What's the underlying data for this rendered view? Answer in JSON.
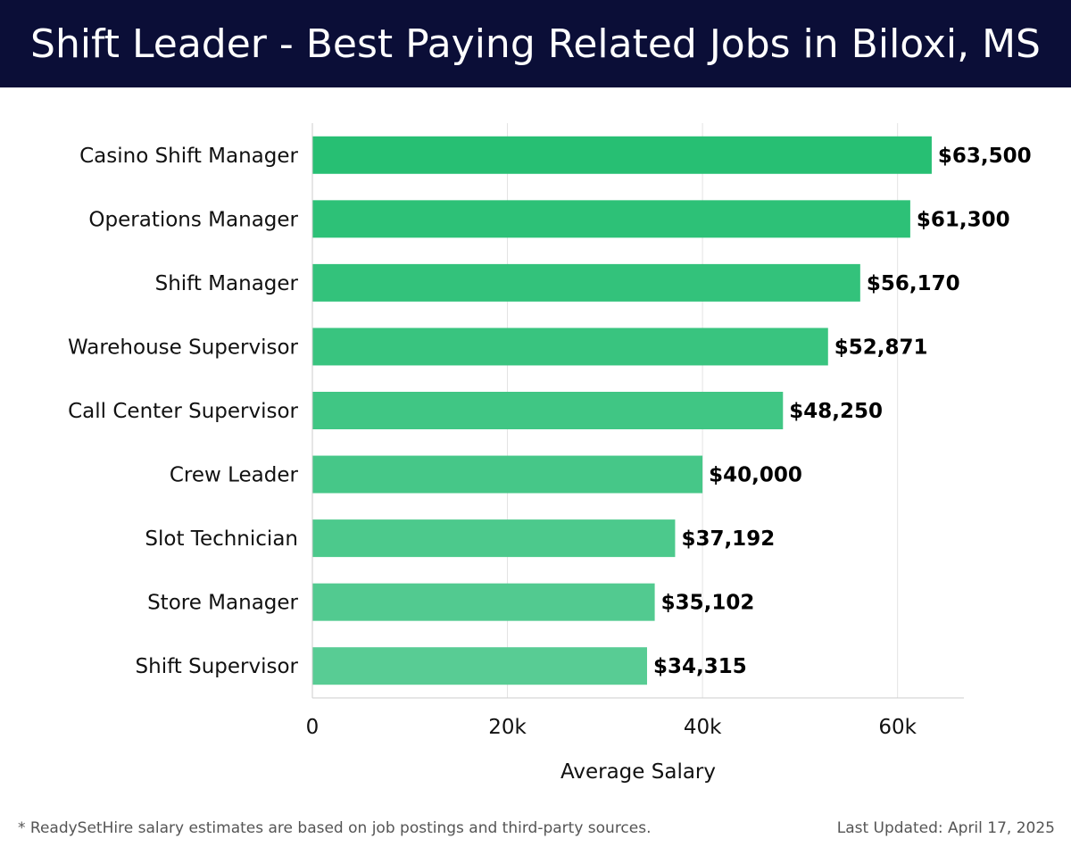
{
  "header": {
    "title": "Shift Leader - Best Paying Related Jobs in Biloxi, MS"
  },
  "footer": {
    "note": "* ReadySetHire salary estimates are based on job postings and third-party sources.",
    "updated": "Last Updated: April 17, 2025"
  },
  "colors": {
    "header_bg": "#0b0e37",
    "bar_dark": "#27bf73",
    "bar_light": "#58cc94"
  },
  "chart_data": {
    "type": "bar",
    "orientation": "horizontal",
    "categories": [
      "Casino Shift Manager",
      "Operations Manager",
      "Shift Manager",
      "Warehouse Supervisor",
      "Call Center Supervisor",
      "Crew Leader",
      "Slot Technician",
      "Store Manager",
      "Shift Supervisor"
    ],
    "values": [
      63500,
      61300,
      56170,
      52871,
      48250,
      40000,
      37192,
      35102,
      34315
    ],
    "value_labels": [
      "$63,500",
      "$61,300",
      "$56,170",
      "$52,871",
      "$48,250",
      "$40,000",
      "$37,192",
      "$35,102",
      "$34,315"
    ],
    "xlabel": "Average Salary",
    "ylabel": "",
    "xlim": [
      0,
      66800
    ],
    "xticks": [
      0,
      20000,
      40000,
      60000
    ],
    "xtick_labels": [
      "0",
      "20k",
      "40k",
      "60k"
    ],
    "grid": "vertical"
  }
}
